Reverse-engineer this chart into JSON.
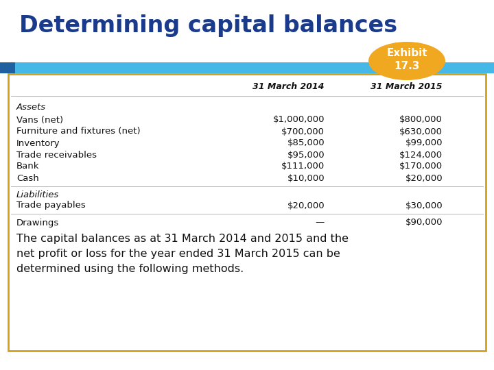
{
  "title": "Determining capital balances",
  "exhibit_label": "Exhibit\n17.3",
  "col1_header": "31 March 2014",
  "col2_header": "31 March 2015",
  "rows": [
    {
      "label": "Assets",
      "val1": "",
      "val2": "",
      "italic": true
    },
    {
      "label": "Vans (net)",
      "val1": "$1,000,000",
      "val2": "$800,000",
      "italic": false
    },
    {
      "label": "Furniture and fixtures (net)",
      "val1": "$700,000",
      "val2": "$630,000",
      "italic": false
    },
    {
      "label": "Inventory",
      "val1": "$85,000",
      "val2": "$99,000",
      "italic": false
    },
    {
      "label": "Trade receivables",
      "val1": "$95,000",
      "val2": "$124,000",
      "italic": false
    },
    {
      "label": "Bank",
      "val1": "$111,000",
      "val2": "$170,000",
      "italic": false
    },
    {
      "label": "Cash",
      "val1": "$10,000",
      "val2": "$20,000",
      "italic": false
    },
    {
      "label": "Liabilities",
      "val1": "",
      "val2": "",
      "italic": true
    },
    {
      "label": "Trade payables",
      "val1": "$20,000",
      "val2": "$30,000",
      "italic": false
    },
    {
      "label": "Drawings",
      "val1": "—",
      "val2": "$90,000",
      "italic": false
    }
  ],
  "footer_text": "The capital balances as at 31 March 2014 and 2015 and the\nnet profit or loss for the year ended 31 March 2015 can be\ndetermined using the following methods.",
  "title_color": "#1a3a8c",
  "header_bar_color": "#45b8e8",
  "header_bar_dark": "#2060a0",
  "exhibit_bg": "#f0a820",
  "exhibit_text_color": "#ffffff",
  "table_border_color": "#d4a017",
  "table_bg": "#ffffff",
  "text_color": "#111111",
  "bg_color": "#ffffff",
  "sep_color": "#aaaaaa"
}
